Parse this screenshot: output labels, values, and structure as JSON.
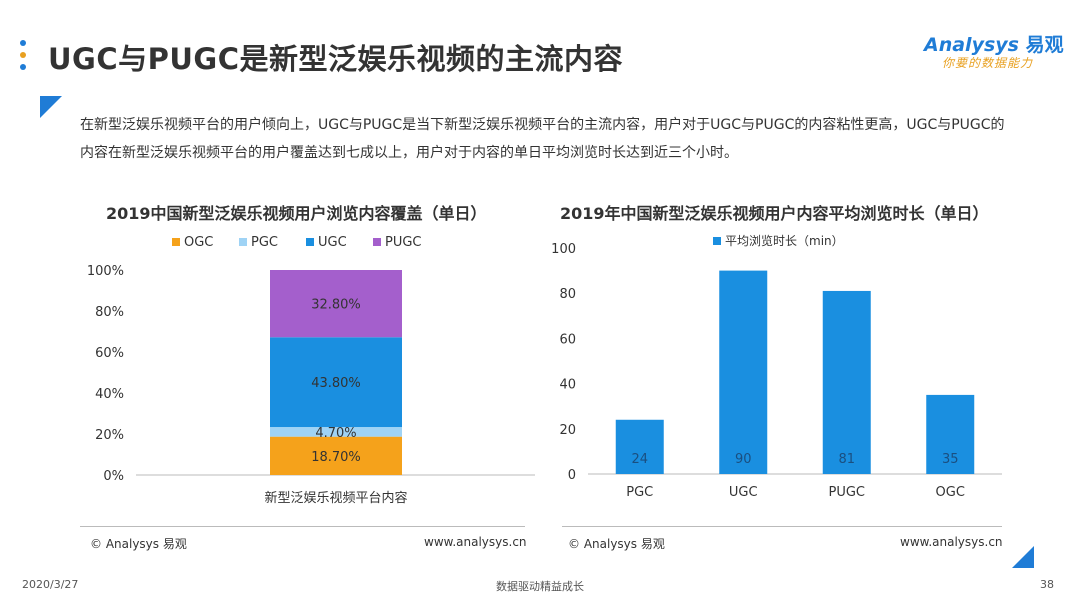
{
  "header": {
    "title": "UGC与PUGC是新型泛娱乐视频的主流内容",
    "logo_name": "Analysys",
    "logo_cn": "易观",
    "logo_slogan": "你要的数据能力",
    "dot_colors": [
      "#1f7cd6",
      "#e8a020",
      "#1f7cd6"
    ]
  },
  "summary": "在新型泛娱乐视频平台的用户倾向上，UGC与PUGC是当下新型泛娱乐视频平台的主流内容，用户对于UGC与PUGC的内容粘性更高，UGC与PUGC的内容在新型泛娱乐视频平台的用户覆盖达到七成以上，用户对于内容的单日平均浏览时长达到近三个小时。",
  "chart_data": [
    {
      "type": "bar",
      "stacked": true,
      "title": "2019中国新型泛娱乐视频用户浏览内容覆盖（单日）",
      "categories": [
        "新型泛娱乐视频平台内容"
      ],
      "series": [
        {
          "name": "OGC",
          "values": [
            18.7
          ],
          "label": "18.70%",
          "color": "#f5a21b"
        },
        {
          "name": "PGC",
          "values": [
            4.7
          ],
          "label": "4.70%",
          "color": "#9fd3f5"
        },
        {
          "name": "UGC",
          "values": [
            43.8
          ],
          "label": "43.80%",
          "color": "#1a8fe0"
        },
        {
          "name": "PUGC",
          "values": [
            32.8
          ],
          "label": "32.80%",
          "color": "#a45fcc"
        }
      ],
      "ylim": [
        0,
        100
      ],
      "yticks": [
        "0%",
        "20%",
        "40%",
        "60%",
        "80%",
        "100%"
      ],
      "legend": "top",
      "grid": false,
      "source": "© Analysys 易观",
      "url": "www.analysys.cn"
    },
    {
      "type": "bar",
      "title": "2019年中国新型泛娱乐视频用户内容平均浏览时长（单日）",
      "categories": [
        "PGC",
        "UGC",
        "PUGC",
        "OGC"
      ],
      "series": [
        {
          "name": "平均浏览时长（min）",
          "values": [
            24,
            90,
            81,
            35
          ],
          "color": "#1a8fe0"
        }
      ],
      "ylim": [
        0,
        100
      ],
      "yticks": [
        "0",
        "20",
        "40",
        "60",
        "80",
        "100"
      ],
      "legend": "top",
      "grid": false,
      "source": "© Analysys 易观",
      "url": "www.analysys.cn"
    }
  ],
  "footer": {
    "date": "2020/3/27",
    "center": "数据驱动精益成长",
    "page": "38"
  }
}
